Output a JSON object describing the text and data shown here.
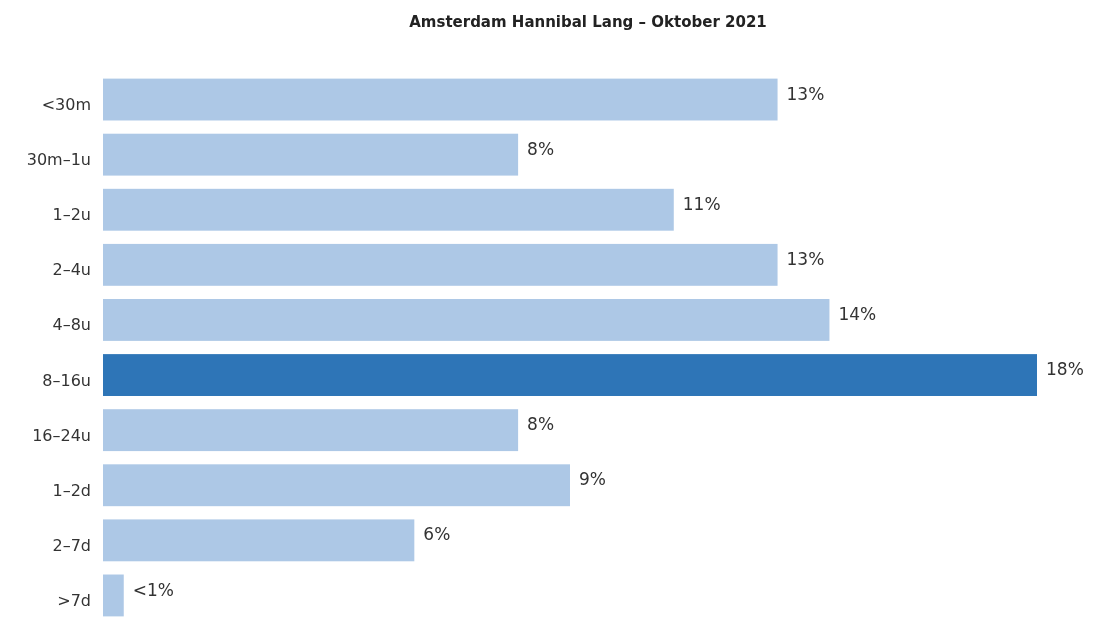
{
  "chart_data": {
    "type": "bar",
    "orientation": "horizontal",
    "title": "Amsterdam Hannibal Lang – Oktober 2021",
    "categories": [
      "<30m",
      "30m–1u",
      "1–2u",
      "2–4u",
      "4–8u",
      "8–16u",
      "16–24u",
      "1–2d",
      "2–7d",
      ">7d"
    ],
    "values": [
      13,
      8,
      11,
      13,
      14,
      18,
      8,
      9,
      6,
      0.4
    ],
    "colors": [
      "#adc8e6",
      "#adc8e6",
      "#adc8e6",
      "#adc8e6",
      "#adc8e6",
      "#2e75b7",
      "#adc8e6",
      "#adc8e6",
      "#adc8e6",
      "#adc8e6"
    ],
    "value_labels": [
      "13%",
      "8%",
      "11%",
      "13%",
      "14%",
      "18%",
      "8%",
      "9%",
      "6%",
      "<1%"
    ]
  }
}
